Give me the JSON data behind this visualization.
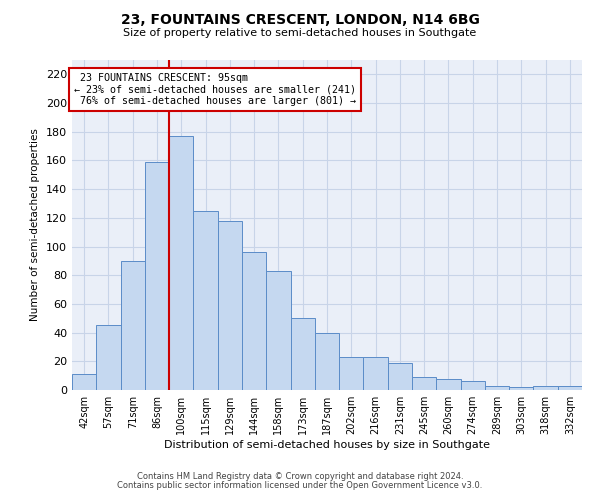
{
  "title_line1": "23, FOUNTAINS CRESCENT, LONDON, N14 6BG",
  "title_line2": "Size of property relative to semi-detached houses in Southgate",
  "xlabel": "Distribution of semi-detached houses by size in Southgate",
  "ylabel": "Number of semi-detached properties",
  "categories": [
    "42sqm",
    "57sqm",
    "71sqm",
    "86sqm",
    "100sqm",
    "115sqm",
    "129sqm",
    "144sqm",
    "158sqm",
    "173sqm",
    "187sqm",
    "202sqm",
    "216sqm",
    "231sqm",
    "245sqm",
    "260sqm",
    "274sqm",
    "289sqm",
    "303sqm",
    "318sqm",
    "332sqm"
  ],
  "values": [
    11,
    45,
    90,
    159,
    177,
    125,
    118,
    96,
    83,
    50,
    40,
    23,
    23,
    19,
    9,
    8,
    6,
    3,
    2,
    3,
    3
  ],
  "bar_color": "#c5d8f0",
  "bar_edge_color": "#5b8cc8",
  "property_label": "23 FOUNTAINS CRESCENT: 95sqm",
  "pct_smaller": 23,
  "pct_larger": 76,
  "n_smaller": 241,
  "n_larger": 801,
  "vline_x": 3.5,
  "vline_color": "#cc0000",
  "annotation_box_edge": "#cc0000",
  "ylim": [
    0,
    230
  ],
  "yticks": [
    0,
    20,
    40,
    60,
    80,
    100,
    120,
    140,
    160,
    180,
    200,
    220
  ],
  "grid_color": "#c8d4e8",
  "background_color": "#eaeff8",
  "footer_line1": "Contains HM Land Registry data © Crown copyright and database right 2024.",
  "footer_line2": "Contains public sector information licensed under the Open Government Licence v3.0."
}
